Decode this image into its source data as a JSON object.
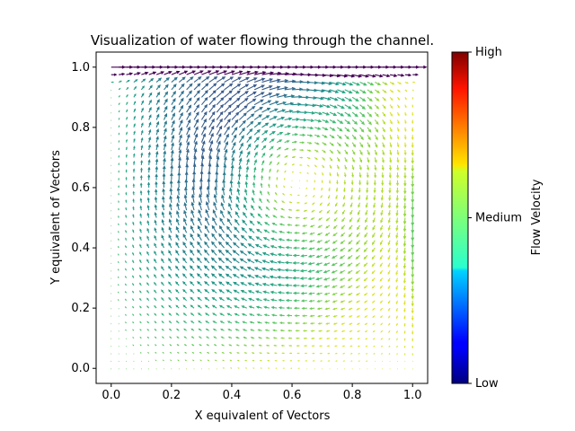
{
  "chart_data": {
    "type": "quiver",
    "title": "Visualization of water flowing through the channel.",
    "xlabel": "X equivalent of Vectors",
    "ylabel": "Y equivalent of Vectors",
    "xlim": [
      -0.05,
      1.05
    ],
    "ylim": [
      -0.05,
      1.05
    ],
    "x_ticks": [
      {
        "value": 0.0,
        "label": "0.0"
      },
      {
        "value": 0.2,
        "label": "0.2"
      },
      {
        "value": 0.4,
        "label": "0.4"
      },
      {
        "value": 0.6,
        "label": "0.6"
      },
      {
        "value": 0.8,
        "label": "0.8"
      },
      {
        "value": 1.0,
        "label": "1.0"
      }
    ],
    "y_ticks": [
      {
        "value": 0.0,
        "label": "0.0"
      },
      {
        "value": 0.2,
        "label": "0.2"
      },
      {
        "value": 0.4,
        "label": "0.4"
      },
      {
        "value": 0.6,
        "label": "0.6"
      },
      {
        "value": 0.8,
        "label": "0.8"
      },
      {
        "value": 1.0,
        "label": "1.0"
      }
    ],
    "grid": false,
    "field": {
      "description": "lid-driven cavity flow, clockwise vortex",
      "x_range": [
        0.0,
        1.0
      ],
      "y_range": [
        0.0,
        1.0
      ],
      "grid_points": 41,
      "vortex_center": [
        0.62,
        0.62
      ]
    },
    "colormap": "viridis",
    "colorbar": {
      "label": "Flow Velocity",
      "colormap": "jet",
      "ticks": [
        {
          "position": 0.0,
          "label": "Low"
        },
        {
          "position": 0.5,
          "label": "Medium"
        },
        {
          "position": 1.0,
          "label": "High"
        }
      ]
    }
  }
}
